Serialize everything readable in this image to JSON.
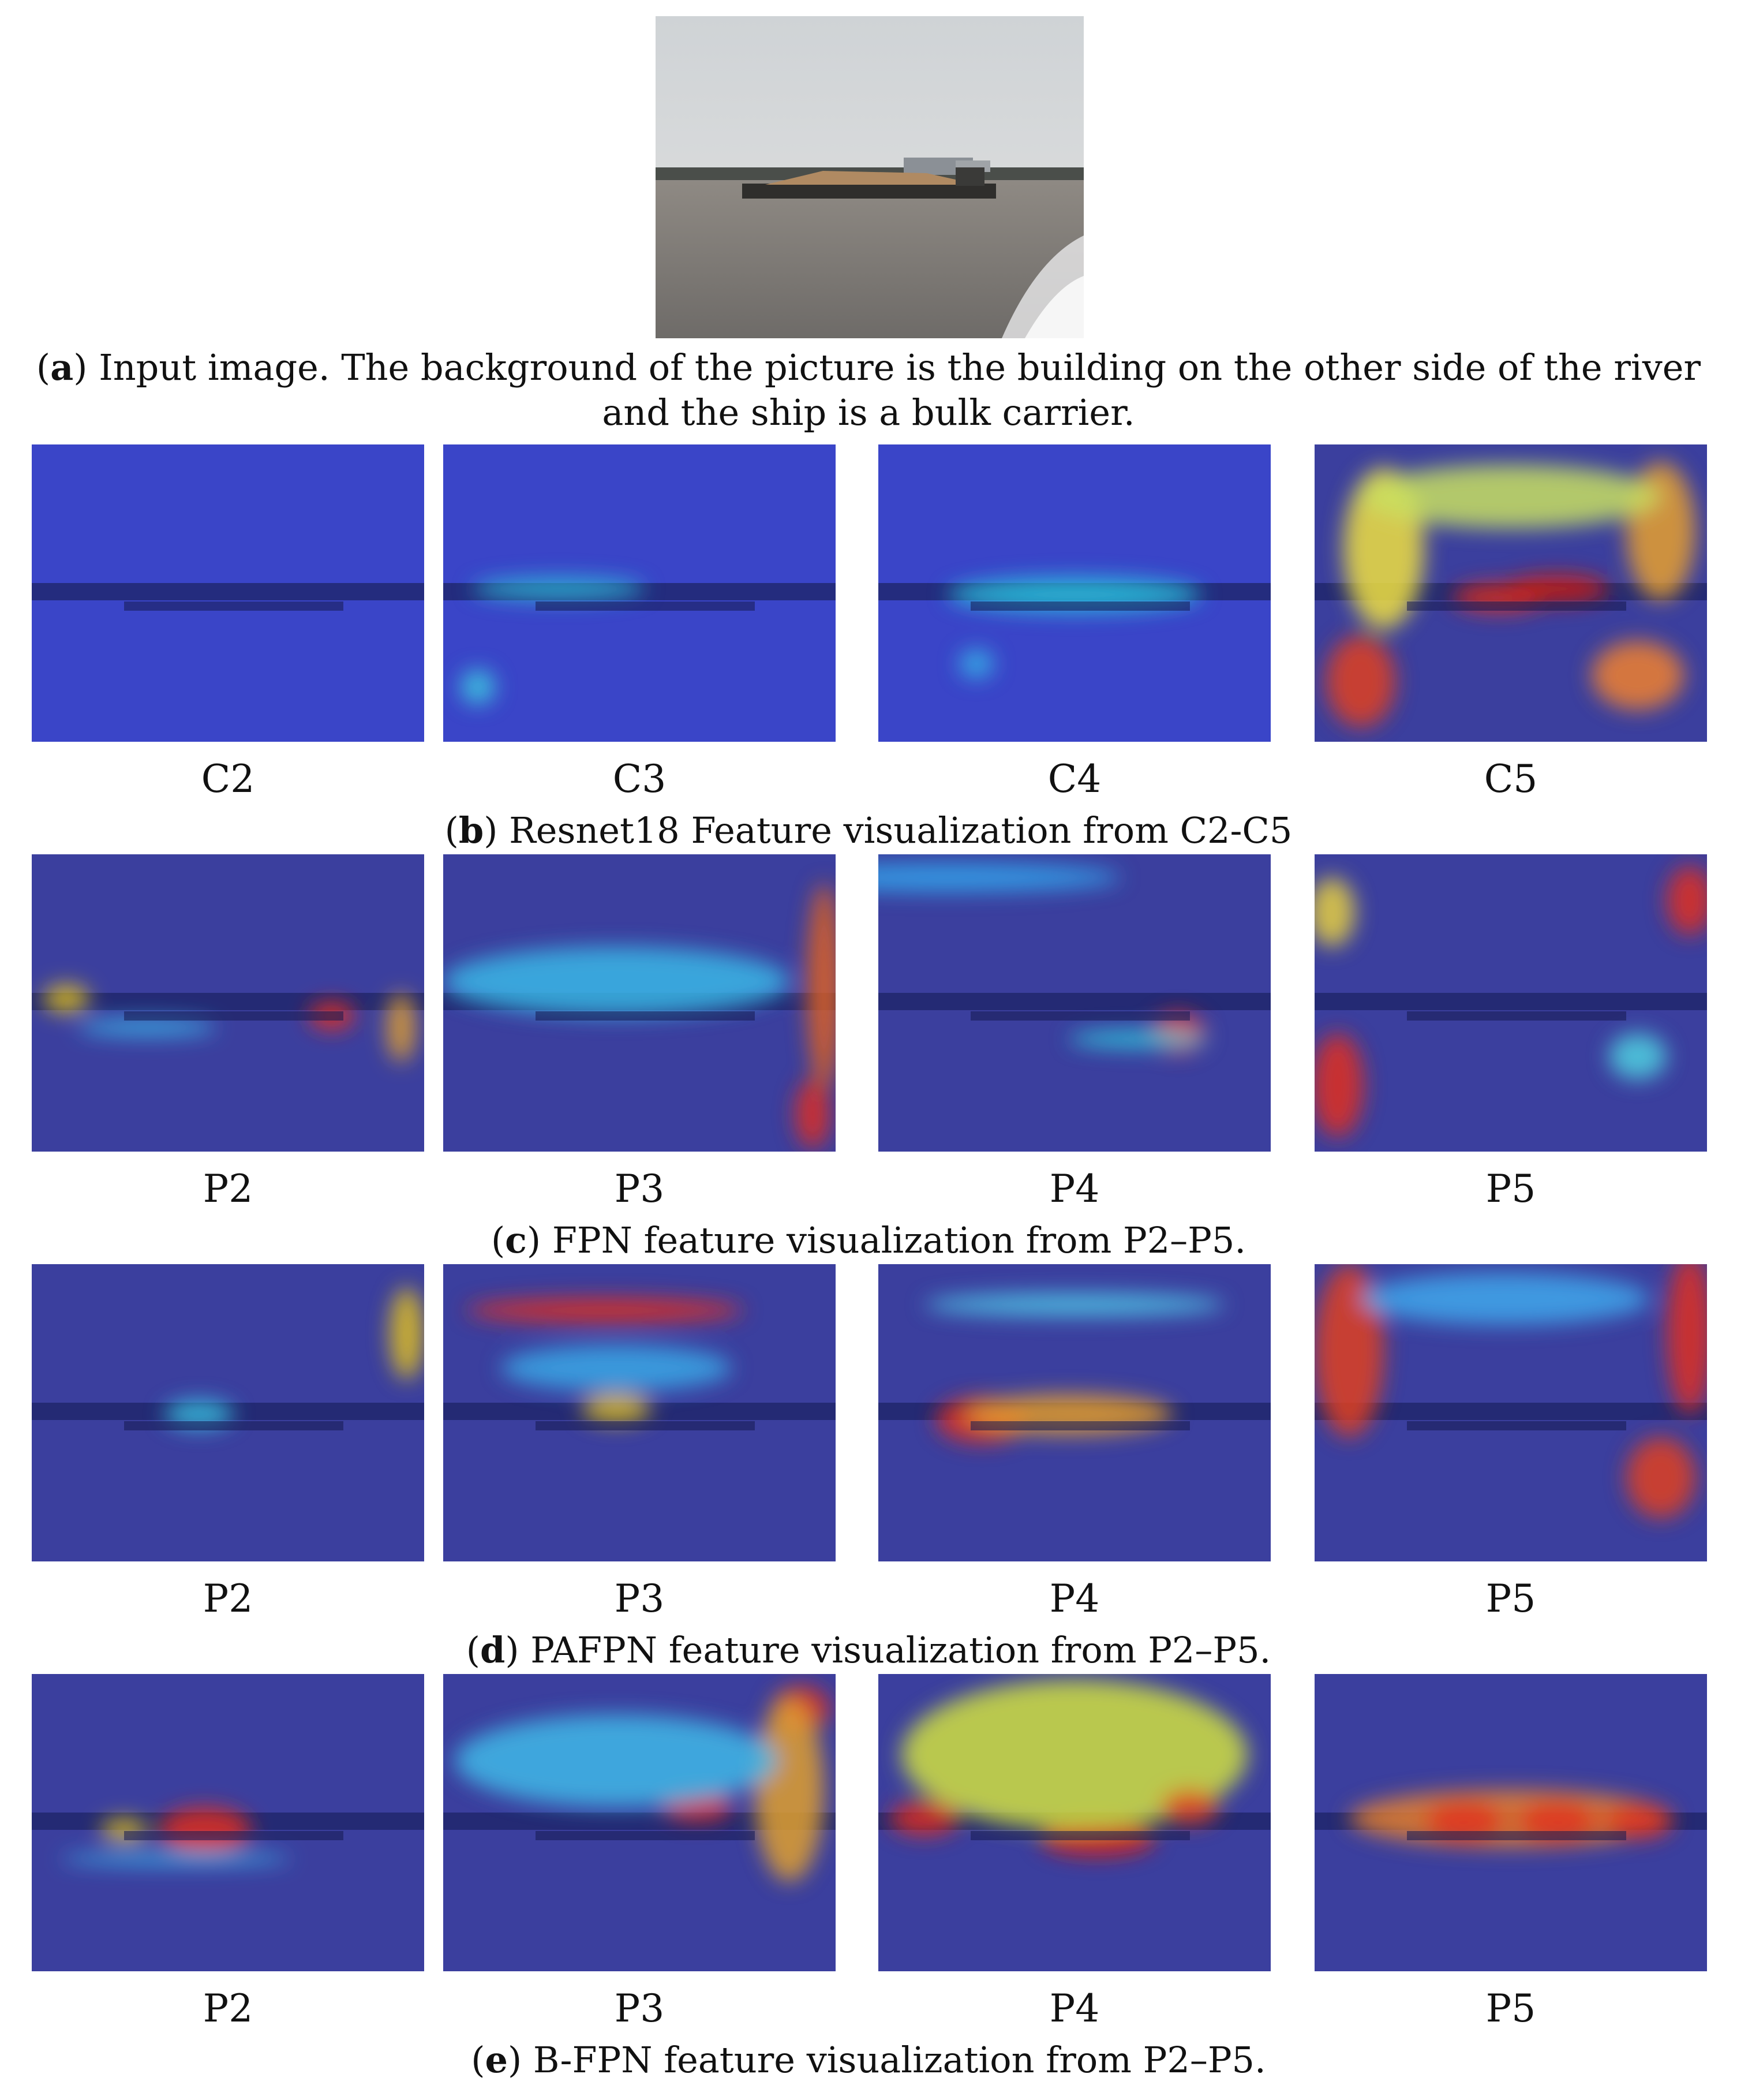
{
  "figure": {
    "input": {
      "caption_letter": "a",
      "caption_text": "Input image. The background of the picture is the building on the other side of the river and the ship is a bulk carrier."
    },
    "rows": [
      {
        "caption_letter": "b",
        "caption_text": "Resnet18 Feature visualization from C2-C5",
        "labels": [
          "C2",
          "C3",
          "C4",
          "C5"
        ]
      },
      {
        "caption_letter": "c",
        "caption_text": "FPN feature visualization from P2–P5.",
        "labels": [
          "P2",
          "P3",
          "P4",
          "P5"
        ]
      },
      {
        "caption_letter": "d",
        "caption_text": "PAFPN feature visualization from P2–P5.",
        "labels": [
          "P2",
          "P3",
          "P4",
          "P5"
        ]
      },
      {
        "caption_letter": "e",
        "caption_text": "B-FPN feature visualization from P2–P5.",
        "labels": [
          "P2",
          "P3",
          "P4",
          "P5"
        ]
      }
    ]
  }
}
